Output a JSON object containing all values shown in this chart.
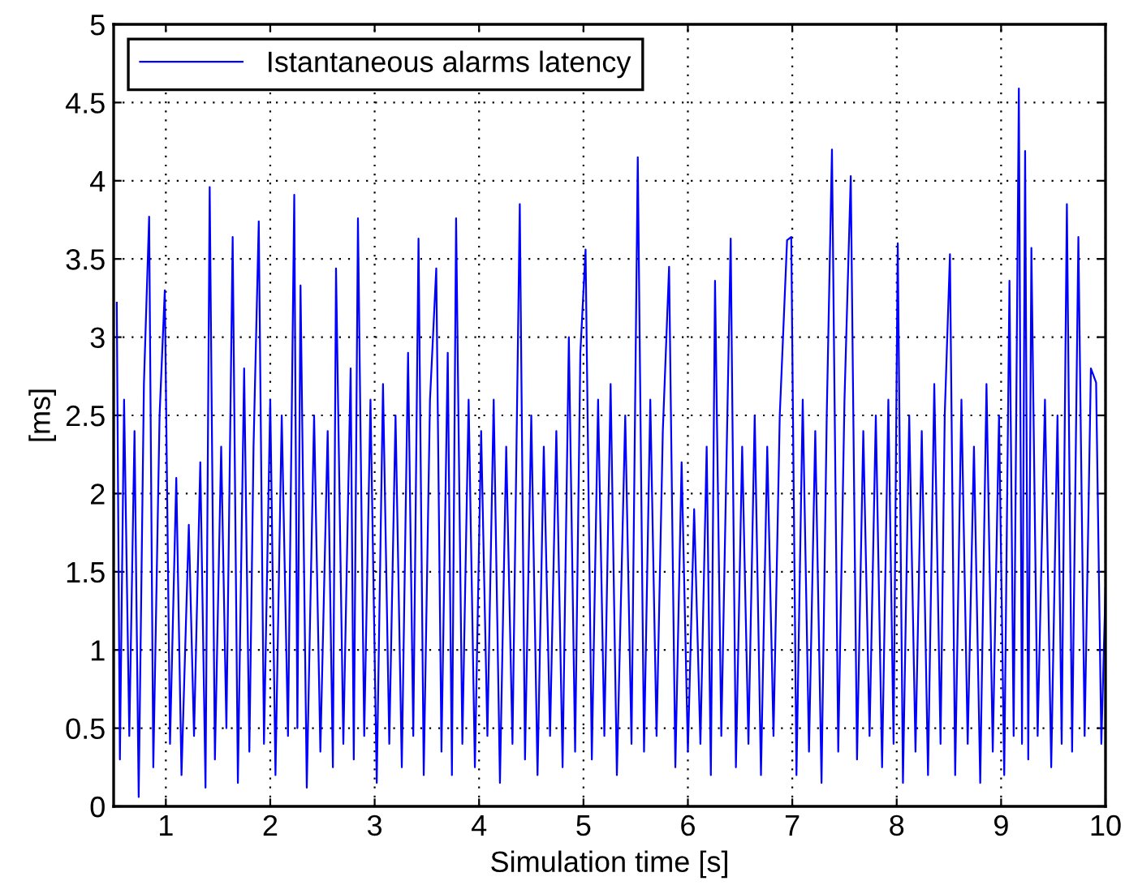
{
  "chart_data": {
    "type": "line",
    "xlabel": "Simulation time [s]",
    "ylabel": "[ms]",
    "xlim": [
      0.5,
      10
    ],
    "ylim": [
      0,
      5
    ],
    "xticks": [
      1,
      2,
      3,
      4,
      5,
      6,
      7,
      8,
      9,
      10
    ],
    "yticks": [
      0,
      0.5,
      1,
      1.5,
      2,
      2.5,
      3,
      3.5,
      4,
      4.5,
      5
    ],
    "grid": true,
    "legend": "top left",
    "marker": "none",
    "line_style": "solid",
    "series": [
      {
        "name": "Istantaneous alarms latency",
        "color": "#0000ff",
        "x": [
          0.53,
          0.56,
          0.6,
          0.65,
          0.7,
          0.74,
          0.79,
          0.84,
          0.88,
          0.94,
          0.99,
          1.04,
          1.1,
          1.15,
          1.22,
          1.27,
          1.33,
          1.38,
          1.42,
          1.47,
          1.53,
          1.58,
          1.64,
          1.69,
          1.75,
          1.8,
          1.84,
          1.89,
          1.94,
          2.0,
          2.05,
          2.11,
          2.17,
          2.23,
          2.26,
          2.29,
          2.35,
          2.42,
          2.48,
          2.55,
          2.6,
          2.63,
          2.7,
          2.77,
          2.8,
          2.84,
          2.9,
          2.96,
          3.02,
          3.08,
          3.14,
          3.2,
          3.26,
          3.32,
          3.37,
          3.42,
          3.47,
          3.53,
          3.59,
          3.64,
          3.7,
          3.74,
          3.78,
          3.84,
          3.9,
          3.96,
          4.02,
          4.08,
          4.14,
          4.2,
          4.26,
          4.32,
          4.39,
          4.44,
          4.5,
          4.56,
          4.62,
          4.68,
          4.74,
          4.8,
          4.86,
          4.92,
          4.97,
          5.02,
          5.08,
          5.14,
          5.2,
          5.26,
          5.32,
          5.4,
          5.46,
          5.52,
          5.58,
          5.64,
          5.7,
          5.76,
          5.82,
          5.88,
          5.94,
          6.0,
          6.06,
          6.12,
          6.18,
          6.22,
          6.26,
          6.32,
          6.41,
          6.46,
          6.52,
          6.58,
          6.64,
          6.7,
          6.76,
          6.82,
          6.88,
          6.95,
          6.99,
          7.04,
          7.1,
          7.16,
          7.22,
          7.28,
          7.33,
          7.38,
          7.44,
          7.5,
          7.56,
          7.62,
          7.68,
          7.74,
          7.8,
          7.86,
          7.92,
          7.97,
          8.01,
          8.06,
          8.12,
          8.18,
          8.24,
          8.3,
          8.36,
          8.42,
          8.46,
          8.51,
          8.56,
          8.62,
          8.68,
          8.74,
          8.8,
          8.86,
          8.92,
          8.98,
          9.03,
          9.08,
          9.12,
          9.17,
          9.2,
          9.23,
          9.26,
          9.29,
          9.35,
          9.42,
          9.48,
          9.54,
          9.58,
          9.63,
          9.68,
          9.74,
          9.8,
          9.86,
          9.91,
          9.96,
          10.0
        ],
        "values": [
          3.22,
          0.3,
          2.6,
          0.45,
          2.4,
          0.06,
          2.7,
          3.77,
          0.25,
          2.5,
          3.3,
          0.4,
          2.1,
          0.2,
          1.8,
          0.45,
          2.2,
          0.12,
          3.96,
          0.3,
          2.3,
          0.5,
          3.64,
          0.15,
          2.8,
          0.35,
          2.3,
          3.74,
          0.4,
          2.6,
          0.2,
          2.5,
          0.45,
          3.91,
          0.5,
          3.33,
          0.12,
          2.5,
          0.35,
          2.4,
          0.25,
          3.44,
          0.4,
          2.8,
          0.3,
          3.76,
          0.45,
          2.6,
          0.15,
          2.7,
          0.4,
          2.5,
          0.25,
          2.9,
          0.45,
          3.63,
          0.2,
          2.6,
          3.44,
          0.35,
          2.9,
          0.2,
          3.76,
          0.4,
          2.6,
          0.25,
          2.4,
          0.45,
          2.6,
          0.15,
          2.3,
          0.4,
          3.85,
          0.3,
          2.5,
          0.2,
          2.3,
          0.45,
          2.4,
          0.25,
          3.0,
          0.35,
          2.9,
          3.56,
          0.3,
          2.6,
          0.45,
          2.7,
          0.2,
          2.5,
          0.4,
          4.15,
          0.35,
          2.6,
          0.45,
          2.4,
          3.45,
          0.25,
          2.2,
          0.35,
          1.9,
          0.4,
          2.3,
          0.2,
          3.36,
          0.45,
          3.63,
          0.25,
          2.3,
          0.4,
          2.5,
          0.2,
          2.3,
          0.45,
          2.5,
          3.62,
          3.64,
          0.2,
          2.6,
          0.35,
          2.4,
          0.15,
          2.5,
          4.2,
          0.35,
          2.6,
          4.03,
          0.3,
          2.4,
          0.45,
          2.5,
          0.25,
          2.6,
          0.4,
          3.6,
          0.15,
          2.5,
          0.35,
          2.4,
          0.2,
          2.7,
          0.4,
          2.5,
          3.53,
          0.2,
          2.6,
          0.4,
          2.3,
          0.15,
          2.7,
          0.35,
          2.5,
          0.2,
          3.36,
          0.45,
          4.59,
          0.4,
          4.19,
          0.3,
          3.57,
          0.45,
          2.6,
          0.25,
          2.5,
          0.4,
          3.85,
          0.35,
          3.64,
          0.45,
          2.8,
          2.71,
          0.4,
          1.4
        ]
      }
    ]
  }
}
